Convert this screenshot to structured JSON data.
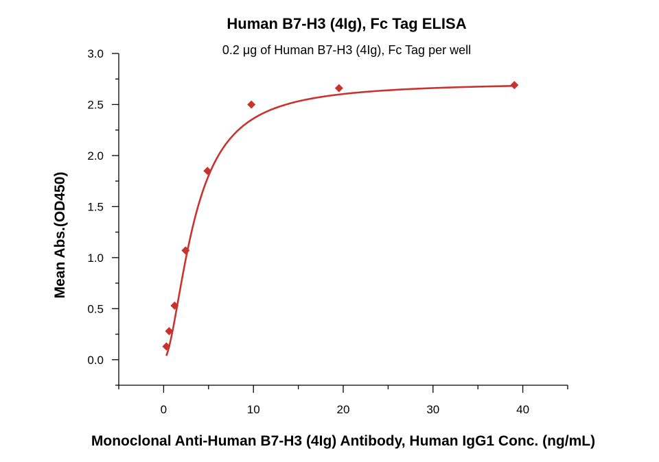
{
  "chart_data": {
    "type": "scatter",
    "title": "Human B7-H3 (4Ig), Fc Tag ELISA",
    "subtitle": "0.2 μg of Human B7-H3 (4Ig), Fc Tag per well",
    "xlabel": "Monoclonal Anti-Human B7-H3 (4Ig) Antibody, Human IgG1 Conc. (ng/mL)",
    "ylabel": "Mean Abs.(OD450)",
    "xlim": [
      -5,
      45
    ],
    "ylim": [
      -0.25,
      3.0
    ],
    "x_ticks": [
      0,
      10,
      20,
      30,
      40
    ],
    "y_ticks": [
      0.0,
      0.5,
      1.0,
      1.5,
      2.0,
      2.5,
      3.0
    ],
    "x_tick_labels": [
      "0",
      "10",
      "20",
      "30",
      "40"
    ],
    "y_tick_labels": [
      "0.0",
      "0.5",
      "1.0",
      "1.5",
      "2.0",
      "2.5",
      "3.0"
    ],
    "series": [
      {
        "marker": "diamond",
        "color": "#c8332e",
        "x": [
          0.305,
          0.61,
          1.22,
          2.44,
          4.88,
          9.77,
          19.53,
          39.06
        ],
        "y": [
          0.13,
          0.28,
          0.53,
          1.07,
          1.85,
          2.5,
          2.66,
          2.69
        ],
        "fit": "four-parameter logistic curve"
      }
    ],
    "grid": false,
    "legend": "none"
  }
}
